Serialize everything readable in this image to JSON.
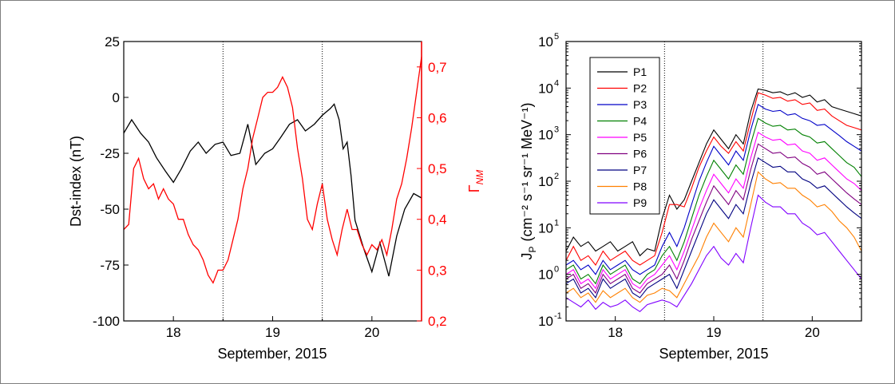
{
  "chart_data": [
    {
      "type": "line",
      "xlabel": "September, 2015",
      "x_ticks": [
        18,
        19,
        20
      ],
      "x_tick_labels": [
        "18",
        "19",
        "20"
      ],
      "xlim": [
        17.5,
        20.5
      ],
      "vlines": [
        18.5,
        19.5
      ],
      "y_left": {
        "label": "Dst-index (nT)",
        "ylim": [
          -100,
          25
        ],
        "ticks": [
          25,
          0,
          -25,
          -50,
          -75,
          -100
        ],
        "tick_labels": [
          "25",
          "0",
          "-25",
          "-50",
          "-75",
          "-100"
        ],
        "color": "#000000"
      },
      "y_right": {
        "label": "Γ",
        "label_sub": "NM",
        "ylim": [
          0.2,
          0.75
        ],
        "ticks": [
          0.7,
          0.6,
          0.5,
          0.4,
          0.3,
          0.2
        ],
        "tick_labels": [
          "0,7",
          "0,6",
          "0,5",
          "0,4",
          "0,3",
          "0,2"
        ],
        "color": "#ff0000"
      },
      "series": [
        {
          "axis": "left",
          "color": "#000000",
          "x": [
            17.5,
            17.58,
            17.67,
            17.75,
            17.83,
            17.92,
            18.0,
            18.08,
            18.17,
            18.25,
            18.33,
            18.42,
            18.5,
            18.58,
            18.67,
            18.75,
            18.83,
            18.92,
            19.0,
            19.08,
            19.17,
            19.25,
            19.33,
            19.42,
            19.5,
            19.58,
            19.62,
            19.67,
            19.71,
            19.75,
            19.79,
            19.83,
            19.92,
            20.0,
            20.08,
            20.17,
            20.25,
            20.33,
            20.42,
            20.5
          ],
          "values": [
            -16,
            -10,
            -16,
            -20,
            -27,
            -33,
            -38,
            -32,
            -24,
            -20,
            -25,
            -21,
            -20,
            -26,
            -25,
            -12,
            -30,
            -25,
            -23,
            -18,
            -12,
            -10,
            -15,
            -12,
            -8,
            -5,
            -3,
            -10,
            -23,
            -20,
            -35,
            -55,
            -68,
            -78,
            -65,
            -80,
            -62,
            -50,
            -43,
            -45
          ]
        },
        {
          "axis": "right",
          "color": "#ff0000",
          "x": [
            17.5,
            17.55,
            17.6,
            17.65,
            17.7,
            17.75,
            17.8,
            17.85,
            17.9,
            17.95,
            18.0,
            18.05,
            18.1,
            18.15,
            18.2,
            18.25,
            18.3,
            18.35,
            18.4,
            18.45,
            18.5,
            18.55,
            18.6,
            18.65,
            18.7,
            18.75,
            18.8,
            18.85,
            18.9,
            18.95,
            19.0,
            19.05,
            19.1,
            19.15,
            19.2,
            19.25,
            19.3,
            19.35,
            19.4,
            19.45,
            19.5,
            19.55,
            19.6,
            19.65,
            19.7,
            19.75,
            19.8,
            19.85,
            19.9,
            19.95,
            20.0,
            20.05,
            20.1,
            20.15,
            20.2,
            20.25,
            20.3,
            20.35,
            20.4,
            20.45,
            20.5
          ],
          "values": [
            0.38,
            0.39,
            0.5,
            0.52,
            0.48,
            0.46,
            0.47,
            0.44,
            0.46,
            0.44,
            0.43,
            0.4,
            0.4,
            0.37,
            0.35,
            0.34,
            0.32,
            0.29,
            0.275,
            0.3,
            0.3,
            0.32,
            0.36,
            0.4,
            0.46,
            0.5,
            0.56,
            0.6,
            0.64,
            0.65,
            0.65,
            0.66,
            0.68,
            0.66,
            0.62,
            0.54,
            0.48,
            0.4,
            0.38,
            0.43,
            0.47,
            0.4,
            0.36,
            0.33,
            0.38,
            0.42,
            0.38,
            0.38,
            0.35,
            0.33,
            0.35,
            0.34,
            0.36,
            0.33,
            0.38,
            0.44,
            0.47,
            0.52,
            0.58,
            0.65,
            0.72
          ]
        }
      ]
    },
    {
      "type": "line",
      "xlabel": "September, 2015",
      "x_ticks": [
        18,
        19,
        20
      ],
      "x_tick_labels": [
        "18",
        "19",
        "20"
      ],
      "xlim": [
        17.5,
        20.5
      ],
      "vlines": [
        18.5,
        19.5
      ],
      "y": {
        "label": "J",
        "label_sub": "P",
        "label_units": "(cm⁻² s⁻¹ sr⁻¹ MeV⁻¹)",
        "scale": "log",
        "ylim": [
          0.1,
          100000
        ],
        "tick_exponents": [
          "5",
          "4",
          "3",
          "2",
          "1",
          "0",
          "-1"
        ],
        "tick_base": "10"
      },
      "legend": {
        "position": "top-left"
      },
      "series": [
        {
          "name": "P1",
          "color": "#000000",
          "log_values": [
            0.5,
            0.8,
            0.6,
            0.7,
            0.5,
            0.6,
            0.7,
            0.5,
            0.6,
            0.7,
            0.4,
            0.55,
            0.5,
            1.2,
            1.7,
            1.4,
            1.6,
            2.0,
            2.4,
            2.8,
            3.1,
            2.9,
            2.7,
            3.0,
            2.8,
            3.5,
            3.98,
            3.95,
            3.9,
            3.92,
            3.85,
            3.9,
            3.8,
            3.85,
            3.7,
            3.75,
            3.6,
            3.55,
            3.5,
            3.45,
            3.4
          ]
        },
        {
          "name": "P2",
          "color": "#ff0000",
          "log_values": [
            0.3,
            0.6,
            0.3,
            0.4,
            0.2,
            0.5,
            0.3,
            0.4,
            0.5,
            0.3,
            0.2,
            0.3,
            0.4,
            0.9,
            1.5,
            1.5,
            1.45,
            1.85,
            2.3,
            2.65,
            2.95,
            2.75,
            2.6,
            2.85,
            2.65,
            3.3,
            3.9,
            3.85,
            3.78,
            3.8,
            3.72,
            3.75,
            3.65,
            3.68,
            3.52,
            3.55,
            3.4,
            3.3,
            3.2,
            3.15,
            3.1
          ]
        },
        {
          "name": "P3",
          "color": "#0000c8",
          "log_values": [
            0.2,
            0.3,
            0.1,
            0.2,
            0.0,
            0.3,
            0.1,
            0.2,
            0.3,
            0.1,
            0.0,
            0.1,
            0.2,
            0.6,
            0.9,
            0.6,
            1.0,
            1.5,
            2.0,
            2.4,
            2.75,
            2.55,
            2.35,
            2.65,
            2.45,
            3.1,
            3.65,
            3.55,
            3.5,
            3.52,
            3.42,
            3.45,
            3.35,
            3.3,
            3.2,
            3.22,
            3.1,
            2.98,
            2.85,
            2.75,
            2.65
          ]
        },
        {
          "name": "P4",
          "color": "#008000",
          "log_values": [
            0.1,
            0.2,
            -0.1,
            0.0,
            -0.2,
            0.2,
            0.0,
            0.1,
            0.2,
            -0.1,
            -0.2,
            0.0,
            0.1,
            0.4,
            0.6,
            0.3,
            0.7,
            1.2,
            1.7,
            2.1,
            2.45,
            2.25,
            2.05,
            2.35,
            2.15,
            2.8,
            3.35,
            3.25,
            3.18,
            3.2,
            3.1,
            3.12,
            3.0,
            2.95,
            2.82,
            2.85,
            2.7,
            2.55,
            2.4,
            2.3,
            2.1
          ]
        },
        {
          "name": "P5",
          "color": "#ff00ff",
          "log_values": [
            0.0,
            0.1,
            -0.2,
            -0.1,
            -0.3,
            0.1,
            -0.1,
            0.0,
            0.1,
            -0.2,
            -0.3,
            -0.1,
            0.0,
            0.2,
            0.4,
            0.1,
            0.5,
            0.95,
            1.4,
            1.8,
            2.15,
            1.95,
            1.75,
            2.05,
            1.85,
            2.5,
            3.05,
            2.95,
            2.88,
            2.9,
            2.78,
            2.8,
            2.65,
            2.6,
            2.45,
            2.5,
            2.35,
            2.2,
            2.05,
            1.95,
            1.8
          ]
        },
        {
          "name": "P6",
          "color": "#800080",
          "log_values": [
            -0.1,
            0.0,
            -0.3,
            -0.2,
            -0.4,
            0.0,
            -0.2,
            -0.1,
            0.0,
            -0.3,
            -0.4,
            -0.2,
            -0.1,
            0.0,
            0.2,
            -0.1,
            0.3,
            0.75,
            1.15,
            1.55,
            1.9,
            1.7,
            1.5,
            1.8,
            1.6,
            2.25,
            2.8,
            2.7,
            2.6,
            2.62,
            2.5,
            2.52,
            2.38,
            2.3,
            2.15,
            2.2,
            2.05,
            1.9,
            1.75,
            1.62,
            1.5
          ]
        },
        {
          "name": "P7",
          "color": "#000080",
          "log_values": [
            -0.2,
            -0.1,
            -0.4,
            -0.3,
            -0.5,
            -0.1,
            -0.3,
            -0.2,
            -0.1,
            -0.4,
            -0.5,
            -0.3,
            -0.2,
            -0.1,
            0.0,
            -0.3,
            0.1,
            0.5,
            0.9,
            1.3,
            1.6,
            1.4,
            1.2,
            1.5,
            1.3,
            1.95,
            2.5,
            2.4,
            2.3,
            2.32,
            2.2,
            2.2,
            2.05,
            1.98,
            1.85,
            1.9,
            1.75,
            1.6,
            1.45,
            1.32,
            1.2
          ]
        },
        {
          "name": "P8",
          "color": "#ff8000",
          "log_values": [
            -0.4,
            -0.3,
            -0.5,
            -0.4,
            -0.6,
            -0.35,
            -0.5,
            -0.4,
            -0.3,
            -0.5,
            -0.6,
            -0.45,
            -0.4,
            -0.3,
            -0.35,
            -0.5,
            -0.2,
            0.1,
            0.4,
            0.8,
            1.1,
            0.9,
            0.7,
            1.0,
            0.8,
            1.5,
            2.2,
            2.05,
            1.95,
            1.97,
            1.85,
            1.85,
            1.7,
            1.6,
            1.45,
            1.5,
            1.35,
            1.15,
            1.0,
            0.8,
            0.5
          ]
        },
        {
          "name": "P9",
          "color": "#8000ff",
          "log_values": [
            -0.5,
            -0.6,
            -0.7,
            -0.55,
            -0.75,
            -0.6,
            -0.7,
            -0.65,
            -0.55,
            -0.7,
            -0.8,
            -0.65,
            -0.6,
            -0.55,
            -0.6,
            -0.7,
            -0.45,
            -0.2,
            0.1,
            0.4,
            0.6,
            0.35,
            0.2,
            0.45,
            0.25,
            1.0,
            1.7,
            1.55,
            1.45,
            1.45,
            1.3,
            1.3,
            1.1,
            1.0,
            0.85,
            0.9,
            0.7,
            0.5,
            0.3,
            0.1,
            -0.1
          ]
        }
      ]
    }
  ]
}
